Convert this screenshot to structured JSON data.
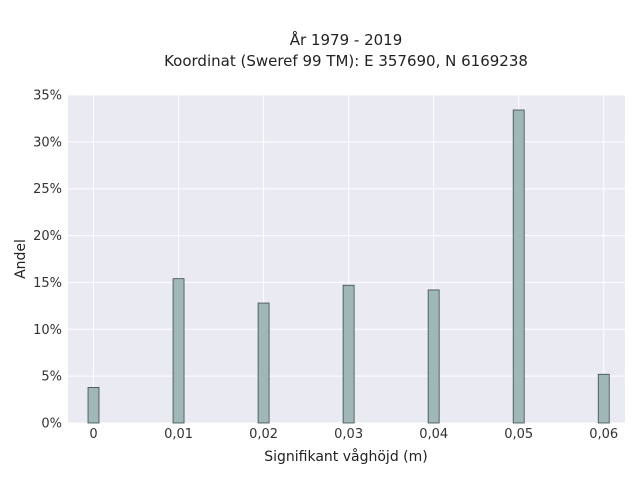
{
  "chart_data": {
    "type": "bar",
    "title": "År 1979 - 2019",
    "subtitle": "Koordinat (Sweref 99 TM): E 357690, N 6169238",
    "xlabel": "Signifikant våghöjd (m)",
    "ylabel": "Andel",
    "x": [
      0,
      0.01,
      0.02,
      0.03,
      0.04,
      0.05,
      0.06
    ],
    "x_tick_labels": [
      "0",
      "0,01",
      "0,02",
      "0,03",
      "0,04",
      "0,05",
      "0,06"
    ],
    "values": [
      3.8,
      15.4,
      12.8,
      14.7,
      14.2,
      33.4,
      5.2
    ],
    "y_unit": "%",
    "y_tick_labels": [
      "0%",
      "5%",
      "10%",
      "15%",
      "20%",
      "25%",
      "30%",
      "35%"
    ],
    "y_ticks": [
      0,
      5,
      10,
      15,
      20,
      25,
      30,
      35
    ],
    "xlim": [
      -0.003,
      0.0625
    ],
    "ylim": [
      0,
      35
    ],
    "grid": true,
    "colors": {
      "background": "#eaeaf2",
      "bar_fill": "#9fb7b6",
      "bar_edge": "#3c4a49",
      "grid": "#ffffff"
    }
  }
}
